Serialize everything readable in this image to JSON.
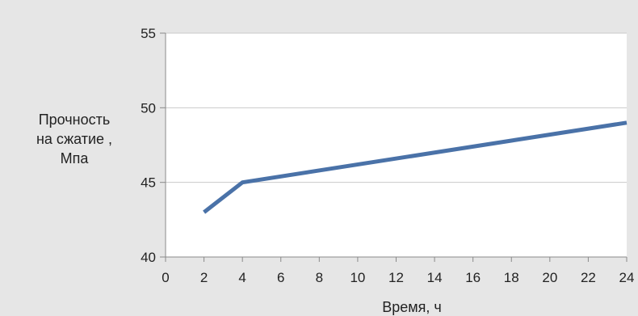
{
  "chart_data": {
    "type": "line",
    "title": "",
    "xlabel": "Время, ч",
    "ylabel_lines": [
      "Прочность",
      "на сжатие ,",
      "Мпа"
    ],
    "xlim": [
      0,
      24
    ],
    "ylim": [
      40,
      55
    ],
    "xticks": [
      0,
      2,
      4,
      6,
      8,
      10,
      12,
      14,
      16,
      18,
      20,
      22,
      24
    ],
    "yticks": [
      40,
      45,
      50,
      55
    ],
    "grid": "horizontal",
    "legend": "none",
    "series": [
      {
        "color": "#4a72a8",
        "points": [
          {
            "x": 2,
            "y": 43
          },
          {
            "x": 4,
            "y": 45
          },
          {
            "x": 24,
            "y": 49
          }
        ]
      }
    ]
  }
}
